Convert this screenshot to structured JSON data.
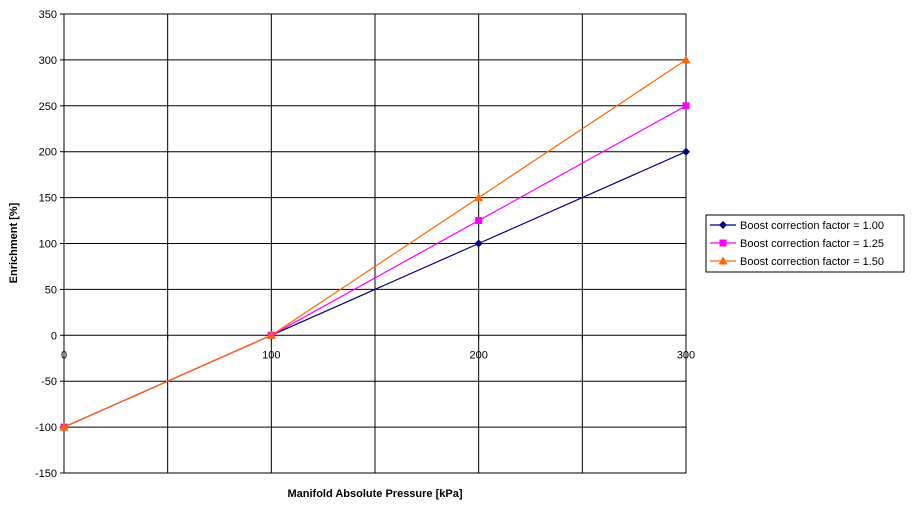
{
  "chart_data": {
    "type": "line",
    "title": "",
    "xlabel": "Manifold Absolute Pressure [kPa]",
    "ylabel": "Enrichment [%]",
    "xlim": [
      0,
      300
    ],
    "ylim": [
      -150,
      350
    ],
    "x_ticks": [
      0,
      100,
      200,
      300
    ],
    "x_grid": [
      0,
      50,
      100,
      150,
      200,
      250,
      300
    ],
    "y_ticks": [
      -150,
      -100,
      -50,
      0,
      50,
      100,
      150,
      200,
      250,
      300,
      350
    ],
    "grid": true,
    "legend_position": "right",
    "series": [
      {
        "name": "Boost correction factor = 1.00",
        "color": "#000080",
        "marker": "diamond",
        "x": [
          0,
          100,
          200,
          300
        ],
        "y": [
          -100,
          0,
          100,
          200
        ]
      },
      {
        "name": "Boost correction factor = 1.25",
        "color": "#ff00ff",
        "marker": "square",
        "x": [
          0,
          100,
          200,
          300
        ],
        "y": [
          -100,
          0,
          125,
          250
        ]
      },
      {
        "name": "Boost correction factor = 1.50",
        "color": "#ff6600",
        "marker": "triangle",
        "x": [
          0,
          100,
          200,
          300
        ],
        "y": [
          -100,
          0,
          150,
          300
        ]
      }
    ]
  }
}
